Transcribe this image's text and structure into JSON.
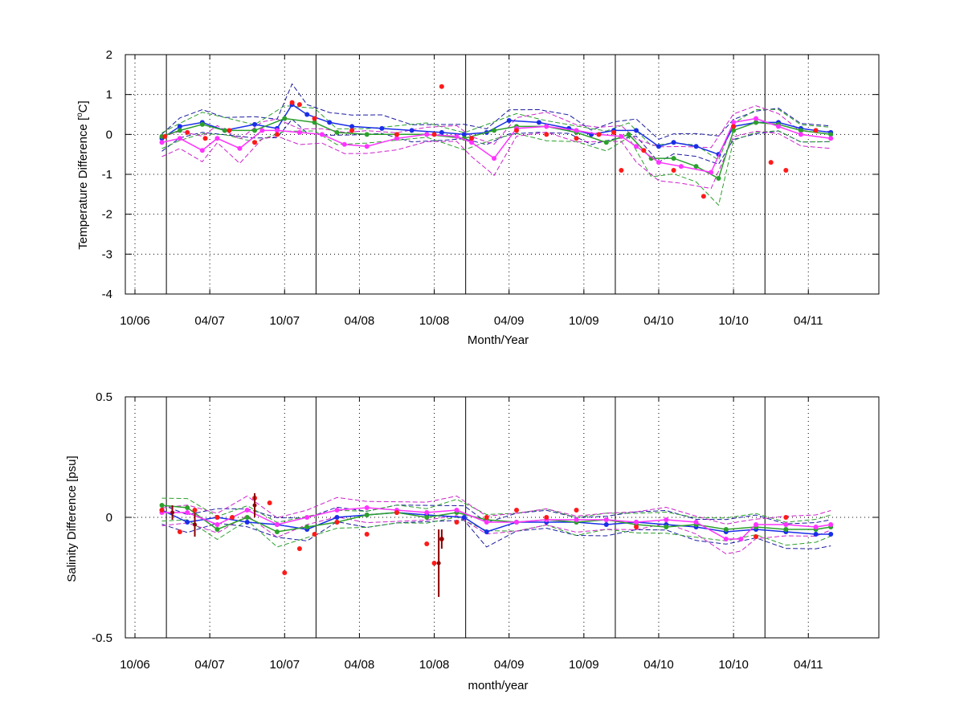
{
  "colors": {
    "blue": "#1a2ee8",
    "green": "#2ca02c",
    "magenta": "#ff33ff",
    "red": "#ff1a1a",
    "darkred": "#8b0000",
    "axis": "#000000",
    "grid": "#000000",
    "blue_dash": "#1a1aa0",
    "green_dash": "#2ca02c",
    "magenta_dash": "#cc22cc"
  },
  "chart_data": [
    {
      "type": "scatter",
      "xlabel": "Month/Year",
      "ylabel_prefix": "Temperature Difference [",
      "ylabel_sup": "o",
      "ylabel_suffix": "C]",
      "xlim": [
        2006.75,
        2011.71
      ],
      "ylim": [
        -4,
        2
      ],
      "grid": "dotted",
      "x_ticks": [
        {
          "x": 2006.75,
          "label": "10/06"
        },
        {
          "x": 2007.25,
          "label": "04/07"
        },
        {
          "x": 2007.75,
          "label": "10/07"
        },
        {
          "x": 2008.25,
          "label": "04/08"
        },
        {
          "x": 2008.75,
          "label": "10/08"
        },
        {
          "x": 2009.25,
          "label": "04/09"
        },
        {
          "x": 2009.75,
          "label": "10/09"
        },
        {
          "x": 2010.25,
          "label": "04/10"
        },
        {
          "x": 2010.75,
          "label": "10/10"
        },
        {
          "x": 2011.25,
          "label": "04/11"
        }
      ],
      "y_ticks": [
        {
          "y": 2,
          "label": "2"
        },
        {
          "y": 1,
          "label": "1"
        },
        {
          "y": 0,
          "label": "0"
        },
        {
          "y": -1,
          "label": "-1"
        },
        {
          "y": -2,
          "label": "-2"
        },
        {
          "y": -3,
          "label": "-3"
        },
        {
          "y": -4,
          "label": "-4"
        }
      ],
      "year_lines": [
        2006.96,
        2007.96,
        2008.96,
        2009.96,
        2010.96
      ],
      "series": [
        {
          "color": "blue",
          "x": [
            2006.93,
            2007.05,
            2007.2,
            2007.35,
            2007.55,
            2007.7,
            2007.8,
            2007.9,
            2008.05,
            2008.2,
            2008.4,
            2008.6,
            2008.8,
            2008.95,
            2009.1,
            2009.25,
            2009.45,
            2009.65,
            2009.8,
            2009.95,
            2010.1,
            2010.25,
            2010.35,
            2010.5,
            2010.65,
            2010.75,
            2010.9,
            2011.05,
            2011.2,
            2011.4
          ],
          "y": [
            -0.1,
            0.2,
            0.3,
            0.1,
            0.25,
            0.15,
            0.75,
            0.5,
            0.3,
            0.2,
            0.15,
            0.1,
            0.05,
            0.0,
            0.05,
            0.35,
            0.3,
            0.15,
            0.0,
            0.1,
            0.1,
            -0.3,
            -0.2,
            -0.3,
            -0.5,
            0.2,
            0.3,
            0.3,
            0.15,
            0.05
          ]
        },
        {
          "color": "green",
          "x": [
            2006.93,
            2007.05,
            2007.2,
            2007.35,
            2007.55,
            2007.75,
            2007.95,
            2008.1,
            2008.3,
            2008.5,
            2008.7,
            2008.95,
            2009.15,
            2009.3,
            2009.5,
            2009.7,
            2009.9,
            2010.05,
            2010.2,
            2010.35,
            2010.5,
            2010.65,
            2010.75,
            2010.9,
            2011.05,
            2011.2,
            2011.4
          ],
          "y": [
            -0.05,
            0.1,
            0.25,
            0.1,
            0.1,
            0.4,
            0.3,
            0.05,
            0.0,
            0.0,
            0.0,
            -0.1,
            0.1,
            0.2,
            0.2,
            0.05,
            -0.2,
            0.0,
            -0.6,
            -0.6,
            -0.8,
            -1.1,
            0.1,
            0.3,
            0.25,
            0.1,
            0.0
          ]
        },
        {
          "color": "magenta",
          "x": [
            2006.93,
            2007.05,
            2007.2,
            2007.3,
            2007.45,
            2007.6,
            2007.7,
            2007.85,
            2008.0,
            2008.15,
            2008.3,
            2008.5,
            2008.7,
            2008.9,
            2009.0,
            2009.15,
            2009.3,
            2009.5,
            2009.7,
            2009.85,
            2010.0,
            2010.1,
            2010.25,
            2010.4,
            2010.6,
            2010.75,
            2010.9,
            2011.05,
            2011.2,
            2011.4
          ],
          "y": [
            -0.2,
            -0.1,
            -0.4,
            -0.1,
            -0.35,
            0.1,
            0.1,
            0.05,
            0.0,
            -0.25,
            -0.3,
            -0.1,
            0.0,
            -0.05,
            -0.2,
            -0.6,
            0.15,
            0.2,
            0.1,
            0.0,
            -0.05,
            -0.3,
            -0.7,
            -0.8,
            -0.95,
            0.3,
            0.4,
            0.2,
            0.0,
            -0.1
          ]
        },
        {
          "color": "red",
          "x": [
            2006.95,
            2007.1,
            2007.22,
            2007.38,
            2007.55,
            2007.7,
            2007.8,
            2007.85,
            2007.95,
            2008.2,
            2008.5,
            2008.75,
            2008.8,
            2009.0,
            2009.3,
            2009.5,
            2009.7,
            2009.85,
            2009.95,
            2010.0,
            2010.15,
            2010.35,
            2010.55,
            2010.75,
            2011.0,
            2011.1,
            2011.3
          ],
          "y": [
            -0.05,
            0.05,
            -0.1,
            0.1,
            -0.2,
            0.0,
            0.8,
            0.75,
            0.4,
            0.1,
            0.0,
            0.0,
            1.2,
            -0.1,
            0.1,
            0.0,
            -0.1,
            0.0,
            0.05,
            -0.9,
            -0.4,
            -0.9,
            -1.55,
            0.2,
            -0.7,
            -0.9,
            0.1
          ]
        }
      ]
    },
    {
      "type": "scatter",
      "xlabel": "month/year",
      "ylabel": "Salinity Difference [psu]",
      "xlim": [
        2006.75,
        2011.71
      ],
      "ylim": [
        -0.5,
        0.5
      ],
      "grid": "dotted",
      "x_ticks": [
        {
          "x": 2006.75,
          "label": "10/06"
        },
        {
          "x": 2007.25,
          "label": "04/07"
        },
        {
          "x": 2007.75,
          "label": "10/07"
        },
        {
          "x": 2008.25,
          "label": "04/08"
        },
        {
          "x": 2008.75,
          "label": "10/08"
        },
        {
          "x": 2009.25,
          "label": "04/09"
        },
        {
          "x": 2009.75,
          "label": "10/09"
        },
        {
          "x": 2010.25,
          "label": "04/10"
        },
        {
          "x": 2010.75,
          "label": "10/10"
        },
        {
          "x": 2011.25,
          "label": "04/11"
        }
      ],
      "y_ticks": [
        {
          "y": 0.5,
          "label": "0.5"
        },
        {
          "y": 0,
          "label": "0"
        },
        {
          "y": -0.5,
          "label": "-0.5"
        }
      ],
      "year_lines": [
        2006.96,
        2007.96,
        2008.96,
        2009.96,
        2010.96
      ],
      "series": [
        {
          "color": "blue",
          "x": [
            2006.93,
            2007.1,
            2007.3,
            2007.5,
            2007.7,
            2007.9,
            2008.1,
            2008.3,
            2008.5,
            2008.7,
            2008.95,
            2009.1,
            2009.3,
            2009.5,
            2009.7,
            2009.9,
            2010.1,
            2010.3,
            2010.5,
            2010.7,
            2010.9,
            2011.1,
            2011.3,
            2011.4
          ],
          "y": [
            0.03,
            -0.02,
            0.0,
            -0.02,
            -0.03,
            -0.05,
            0.0,
            0.01,
            0.02,
            0.01,
            0.0,
            -0.06,
            -0.02,
            -0.02,
            -0.02,
            -0.03,
            -0.02,
            -0.03,
            -0.04,
            -0.06,
            -0.05,
            -0.06,
            -0.07,
            -0.07
          ]
        },
        {
          "color": "green",
          "x": [
            2006.93,
            2007.1,
            2007.3,
            2007.5,
            2007.7,
            2007.9,
            2008.1,
            2008.3,
            2008.5,
            2008.7,
            2008.9,
            2009.1,
            2009.3,
            2009.5,
            2009.7,
            2009.9,
            2010.1,
            2010.3,
            2010.5,
            2010.7,
            2010.9,
            2011.1,
            2011.3,
            2011.4
          ],
          "y": [
            0.05,
            0.04,
            -0.05,
            0.0,
            -0.06,
            -0.04,
            -0.02,
            0.01,
            0.02,
            0.0,
            0.02,
            -0.01,
            -0.02,
            -0.01,
            -0.02,
            -0.01,
            -0.03,
            -0.04,
            -0.03,
            -0.05,
            -0.04,
            -0.05,
            -0.05,
            -0.04
          ]
        },
        {
          "color": "magenta",
          "x": [
            2006.93,
            2007.1,
            2007.3,
            2007.5,
            2007.7,
            2007.9,
            2008.1,
            2008.3,
            2008.5,
            2008.7,
            2008.9,
            2009.1,
            2009.3,
            2009.5,
            2009.7,
            2009.9,
            2010.1,
            2010.3,
            2010.5,
            2010.7,
            2010.8,
            2010.9,
            2011.1,
            2011.3,
            2011.4
          ],
          "y": [
            0.02,
            0.02,
            -0.03,
            0.03,
            -0.03,
            0.0,
            0.03,
            0.04,
            0.03,
            0.02,
            0.03,
            -0.02,
            -0.02,
            -0.01,
            -0.01,
            -0.01,
            -0.02,
            -0.01,
            -0.02,
            -0.09,
            -0.09,
            -0.03,
            -0.03,
            -0.04,
            -0.03
          ]
        },
        {
          "color": "red",
          "x": [
            2006.93,
            2007.05,
            2007.15,
            2007.3,
            2007.4,
            2007.55,
            2007.65,
            2007.75,
            2007.85,
            2007.95,
            2008.1,
            2008.3,
            2008.5,
            2008.7,
            2008.75,
            2008.8,
            2008.9,
            2009.1,
            2009.3,
            2009.5,
            2009.7,
            2010.1,
            2010.9,
            2011.1
          ],
          "y": [
            0.03,
            -0.06,
            0.03,
            0.0,
            0.0,
            0.08,
            0.06,
            -0.23,
            -0.13,
            -0.07,
            -0.02,
            -0.07,
            0.02,
            -0.11,
            -0.19,
            -0.09,
            -0.02,
            0.0,
            0.03,
            0.0,
            0.03,
            -0.04,
            -0.08,
            0.0
          ]
        },
        {
          "color": "darkred",
          "errorbars": [
            {
              "x": 2007.0,
              "y": 0.02,
              "e": 0.03
            },
            {
              "x": 2007.15,
              "y": -0.03,
              "e": 0.05
            },
            {
              "x": 2007.55,
              "y": 0.05,
              "e": 0.05
            },
            {
              "x": 2008.78,
              "y": -0.19,
              "e": 0.14
            },
            {
              "x": 2008.8,
              "y": -0.09,
              "e": 0.04
            }
          ]
        }
      ]
    }
  ]
}
